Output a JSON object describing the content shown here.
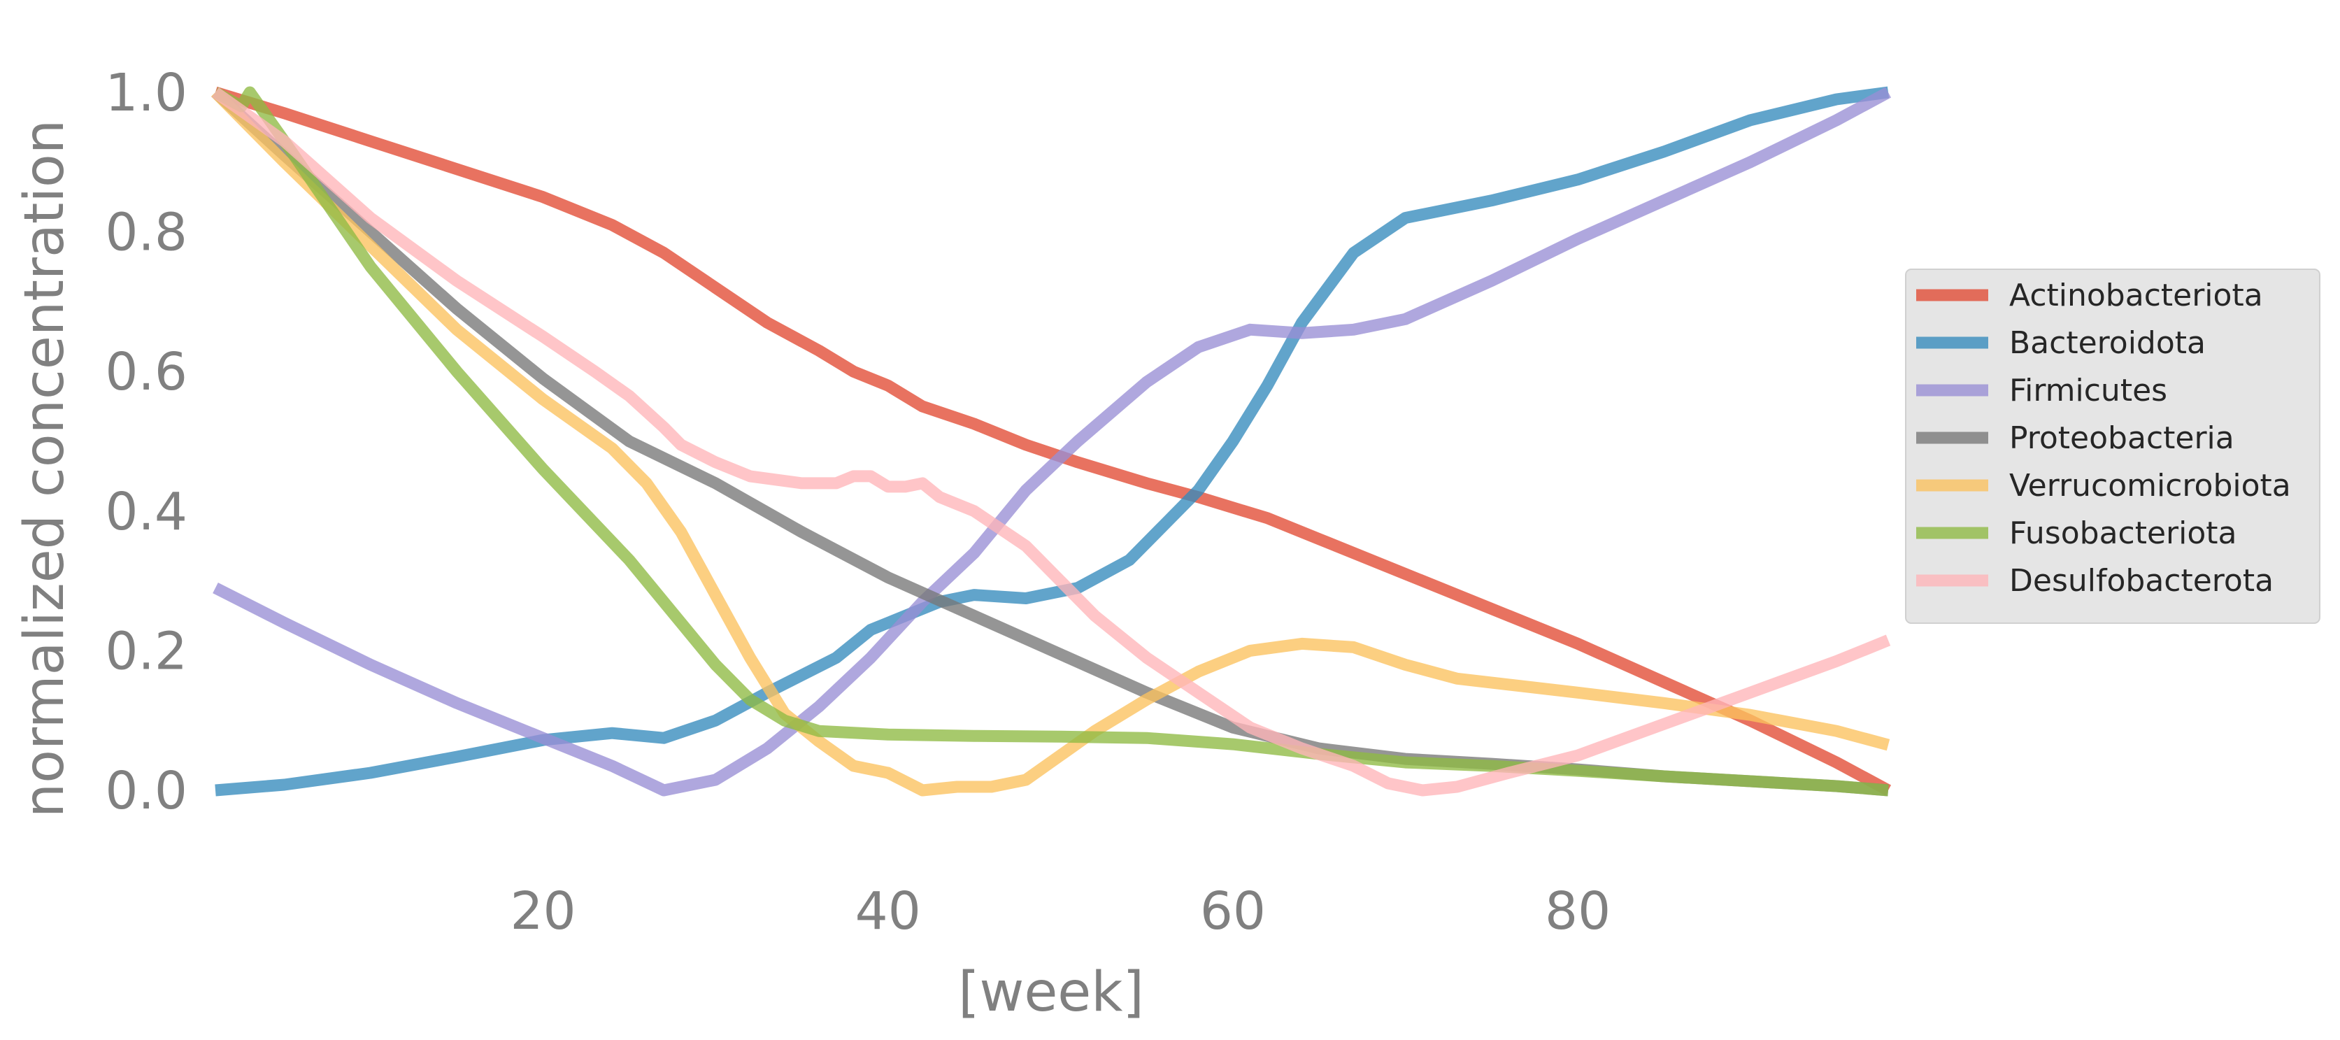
{
  "chart_data": {
    "type": "line",
    "title": "",
    "xlabel": "[week]",
    "ylabel": "normalized concentration",
    "xlim": [
      1,
      98
    ],
    "ylim": [
      -0.08,
      1.08
    ],
    "xticks": [
      20,
      40,
      60,
      80
    ],
    "yticks": [
      0.0,
      0.2,
      0.4,
      0.6,
      0.8,
      1.0
    ],
    "ytick_labels": [
      "0.0",
      "0.2",
      "0.4",
      "0.6",
      "0.8",
      "1.0"
    ],
    "grid": false,
    "legend_position": "center-right",
    "series": [
      {
        "name": "Actinobacteriota",
        "color": "#e24a33",
        "points": [
          [
            1,
            1.0
          ],
          [
            5,
            0.97
          ],
          [
            10,
            0.93
          ],
          [
            15,
            0.89
          ],
          [
            20,
            0.85
          ],
          [
            24,
            0.81
          ],
          [
            27,
            0.77
          ],
          [
            30,
            0.72
          ],
          [
            33,
            0.67
          ],
          [
            36,
            0.63
          ],
          [
            38,
            0.6
          ],
          [
            40,
            0.58
          ],
          [
            42,
            0.55
          ],
          [
            45,
            0.525
          ],
          [
            48,
            0.495
          ],
          [
            51,
            0.47
          ],
          [
            55,
            0.44
          ],
          [
            58,
            0.42
          ],
          [
            62,
            0.39
          ],
          [
            65,
            0.36
          ],
          [
            70,
            0.31
          ],
          [
            75,
            0.26
          ],
          [
            80,
            0.21
          ],
          [
            85,
            0.155
          ],
          [
            90,
            0.1
          ],
          [
            95,
            0.04
          ],
          [
            98,
            0.0
          ]
        ]
      },
      {
        "name": "Bacteroidota",
        "color": "#348abd",
        "points": [
          [
            1,
            0.0
          ],
          [
            5,
            0.008
          ],
          [
            10,
            0.025
          ],
          [
            15,
            0.048
          ],
          [
            20,
            0.072
          ],
          [
            24,
            0.082
          ],
          [
            27,
            0.075
          ],
          [
            30,
            0.1
          ],
          [
            33,
            0.14
          ],
          [
            37,
            0.19
          ],
          [
            39,
            0.23
          ],
          [
            41,
            0.25
          ],
          [
            43,
            0.27
          ],
          [
            45,
            0.28
          ],
          [
            48,
            0.275
          ],
          [
            51,
            0.29
          ],
          [
            54,
            0.33
          ],
          [
            56,
            0.38
          ],
          [
            58,
            0.43
          ],
          [
            60,
            0.5
          ],
          [
            62,
            0.58
          ],
          [
            64,
            0.67
          ],
          [
            67,
            0.77
          ],
          [
            70,
            0.82
          ],
          [
            75,
            0.845
          ],
          [
            80,
            0.875
          ],
          [
            85,
            0.915
          ],
          [
            90,
            0.96
          ],
          [
            95,
            0.99
          ],
          [
            98,
            1.0
          ]
        ]
      },
      {
        "name": "Firmicutes",
        "color": "#988ed5",
        "points": [
          [
            1,
            0.29
          ],
          [
            5,
            0.24
          ],
          [
            10,
            0.18
          ],
          [
            15,
            0.125
          ],
          [
            20,
            0.075
          ],
          [
            24,
            0.035
          ],
          [
            27,
            0.0
          ],
          [
            30,
            0.015
          ],
          [
            33,
            0.06
          ],
          [
            36,
            0.12
          ],
          [
            39,
            0.19
          ],
          [
            42,
            0.27
          ],
          [
            45,
            0.34
          ],
          [
            48,
            0.43
          ],
          [
            51,
            0.5
          ],
          [
            55,
            0.585
          ],
          [
            58,
            0.635
          ],
          [
            61,
            0.66
          ],
          [
            64,
            0.655
          ],
          [
            67,
            0.66
          ],
          [
            70,
            0.675
          ],
          [
            75,
            0.73
          ],
          [
            80,
            0.79
          ],
          [
            85,
            0.845
          ],
          [
            90,
            0.9
          ],
          [
            95,
            0.96
          ],
          [
            98,
            1.0
          ]
        ]
      },
      {
        "name": "Proteobacteria",
        "color": "#777777",
        "points": [
          [
            1,
            1.0
          ],
          [
            5,
            0.91
          ],
          [
            10,
            0.8
          ],
          [
            15,
            0.69
          ],
          [
            20,
            0.59
          ],
          [
            25,
            0.5
          ],
          [
            30,
            0.44
          ],
          [
            35,
            0.37
          ],
          [
            40,
            0.305
          ],
          [
            45,
            0.25
          ],
          [
            50,
            0.195
          ],
          [
            55,
            0.14
          ],
          [
            60,
            0.09
          ],
          [
            65,
            0.06
          ],
          [
            70,
            0.045
          ],
          [
            75,
            0.038
          ],
          [
            80,
            0.03
          ],
          [
            85,
            0.02
          ],
          [
            90,
            0.013
          ],
          [
            95,
            0.006
          ],
          [
            98,
            0.0
          ]
        ]
      },
      {
        "name": "Verrucomicrobiota",
        "color": "#fbc15e",
        "points": [
          [
            1,
            1.0
          ],
          [
            5,
            0.9
          ],
          [
            10,
            0.78
          ],
          [
            15,
            0.66
          ],
          [
            20,
            0.56
          ],
          [
            24,
            0.49
          ],
          [
            26,
            0.44
          ],
          [
            28,
            0.37
          ],
          [
            30,
            0.28
          ],
          [
            32,
            0.19
          ],
          [
            34,
            0.11
          ],
          [
            36,
            0.07
          ],
          [
            38,
            0.035
          ],
          [
            40,
            0.025
          ],
          [
            42,
            0.0
          ],
          [
            44,
            0.005
          ],
          [
            46,
            0.005
          ],
          [
            48,
            0.015
          ],
          [
            50,
            0.05
          ],
          [
            52,
            0.085
          ],
          [
            55,
            0.13
          ],
          [
            58,
            0.17
          ],
          [
            61,
            0.2
          ],
          [
            64,
            0.21
          ],
          [
            67,
            0.205
          ],
          [
            70,
            0.18
          ],
          [
            73,
            0.16
          ],
          [
            80,
            0.14
          ],
          [
            85,
            0.125
          ],
          [
            90,
            0.108
          ],
          [
            95,
            0.085
          ],
          [
            98,
            0.065
          ]
        ]
      },
      {
        "name": "Fusobacteriota",
        "color": "#8eba42",
        "points": [
          [
            1,
            1.0
          ],
          [
            2.5,
            0.98
          ],
          [
            3,
            1.0
          ],
          [
            5,
            0.93
          ],
          [
            10,
            0.75
          ],
          [
            15,
            0.6
          ],
          [
            20,
            0.46
          ],
          [
            25,
            0.33
          ],
          [
            28,
            0.24
          ],
          [
            30,
            0.18
          ],
          [
            32,
            0.13
          ],
          [
            34,
            0.1
          ],
          [
            36,
            0.085
          ],
          [
            40,
            0.08
          ],
          [
            45,
            0.078
          ],
          [
            50,
            0.077
          ],
          [
            55,
            0.075
          ],
          [
            60,
            0.066
          ],
          [
            65,
            0.052
          ],
          [
            70,
            0.04
          ],
          [
            75,
            0.035
          ],
          [
            80,
            0.028
          ],
          [
            85,
            0.02
          ],
          [
            90,
            0.013
          ],
          [
            95,
            0.006
          ],
          [
            98,
            0.0
          ]
        ]
      },
      {
        "name": "Desulfobacterota",
        "color": "#ffb5b8",
        "points": [
          [
            1,
            1.0
          ],
          [
            5,
            0.93
          ],
          [
            10,
            0.82
          ],
          [
            15,
            0.73
          ],
          [
            20,
            0.65
          ],
          [
            23,
            0.6
          ],
          [
            25,
            0.565
          ],
          [
            27,
            0.52
          ],
          [
            28,
            0.495
          ],
          [
            30,
            0.47
          ],
          [
            32,
            0.45
          ],
          [
            35,
            0.44
          ],
          [
            37,
            0.44
          ],
          [
            38,
            0.45
          ],
          [
            39,
            0.45
          ],
          [
            40,
            0.435
          ],
          [
            41,
            0.435
          ],
          [
            42,
            0.44
          ],
          [
            43,
            0.42
          ],
          [
            45,
            0.4
          ],
          [
            48,
            0.35
          ],
          [
            50,
            0.3
          ],
          [
            52,
            0.25
          ],
          [
            55,
            0.19
          ],
          [
            58,
            0.14
          ],
          [
            61,
            0.09
          ],
          [
            64,
            0.06
          ],
          [
            67,
            0.035
          ],
          [
            69,
            0.01
          ],
          [
            71,
            0.0
          ],
          [
            73,
            0.005
          ],
          [
            76,
            0.025
          ],
          [
            80,
            0.05
          ],
          [
            85,
            0.095
          ],
          [
            90,
            0.14
          ],
          [
            95,
            0.185
          ],
          [
            98,
            0.215
          ]
        ]
      }
    ]
  }
}
